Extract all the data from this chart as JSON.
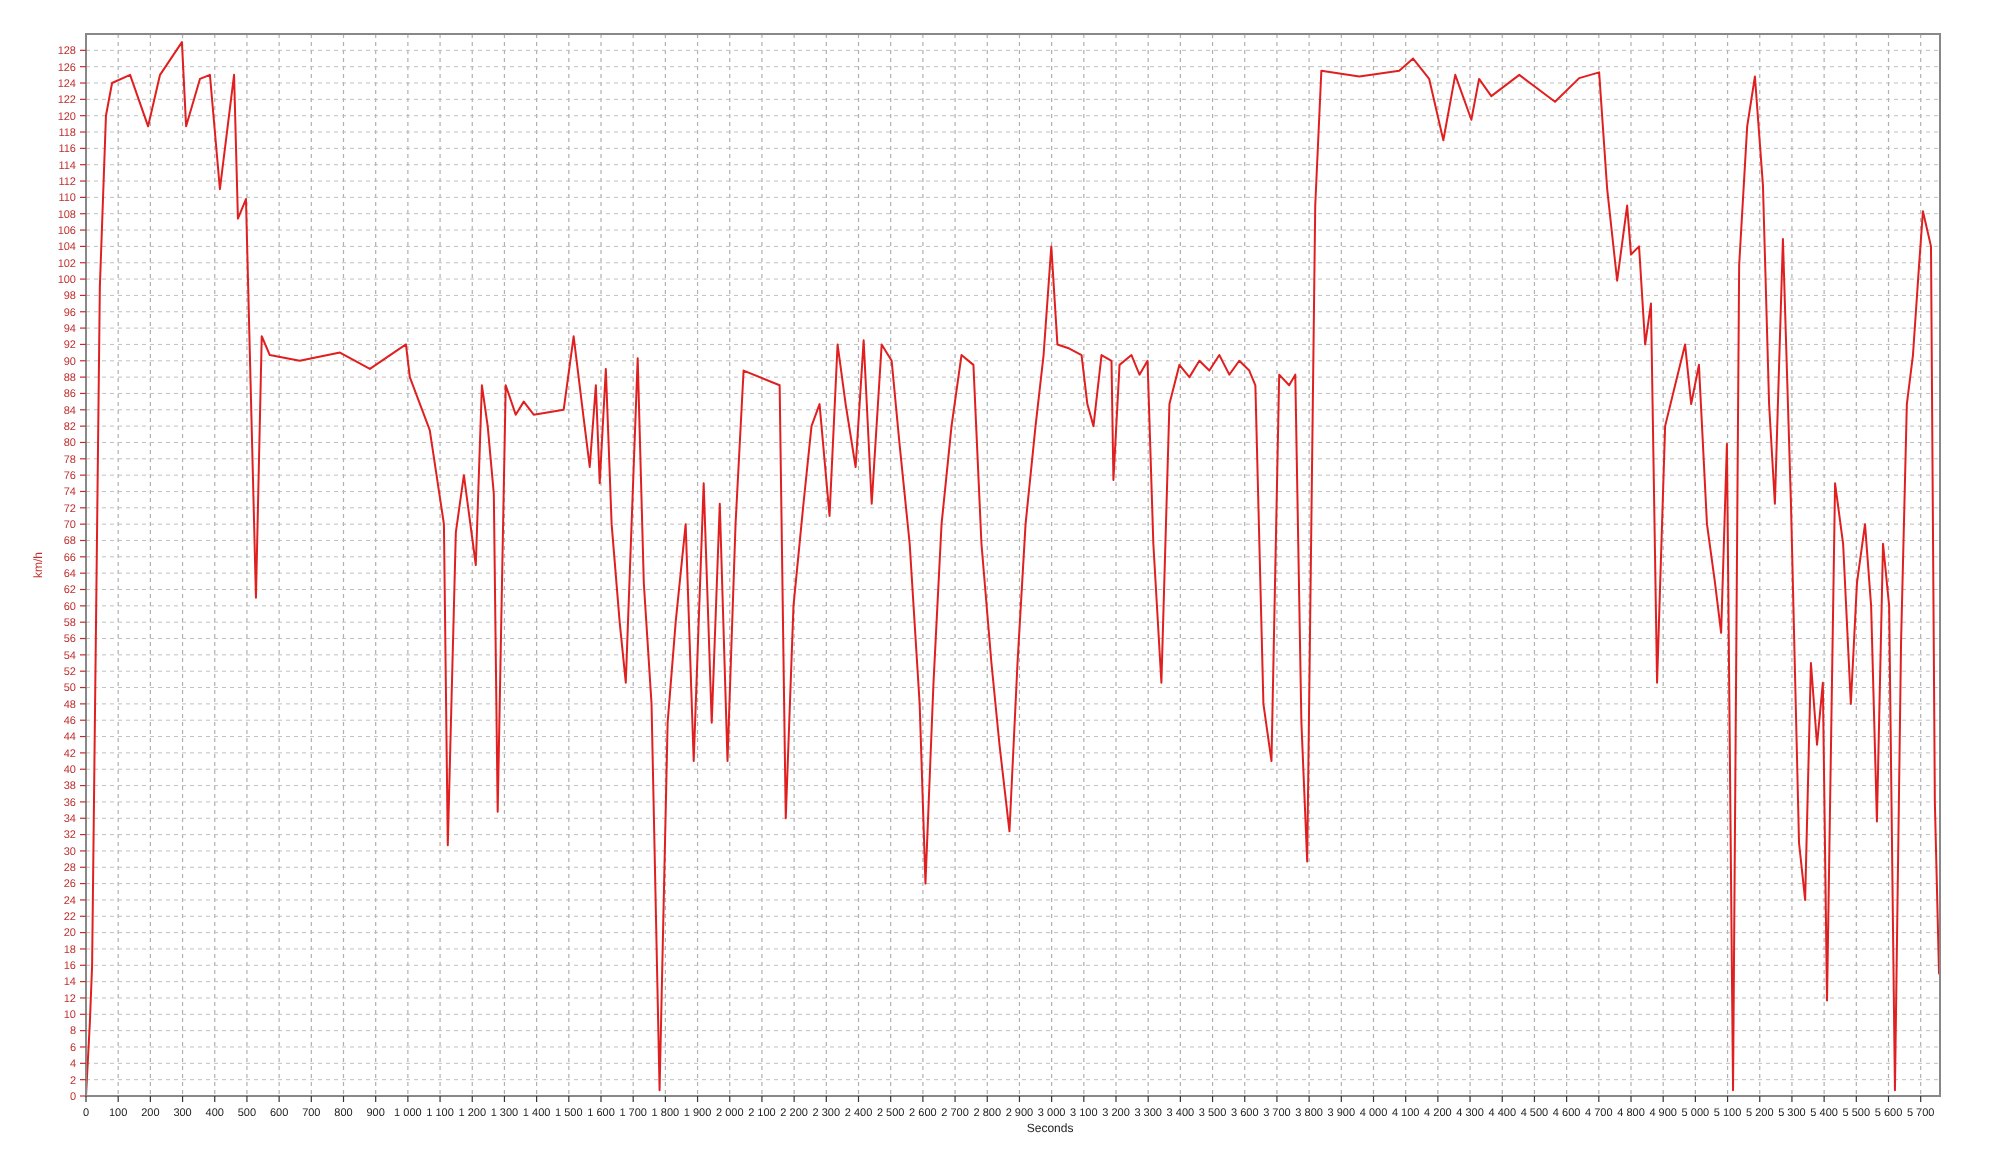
{
  "chart_data": {
    "type": "line",
    "xlabel": "Seconds",
    "ylabel": "km/h",
    "x": [
      0,
      12,
      19,
      43,
      62,
      81,
      137,
      193,
      230,
      298,
      311,
      354,
      385,
      416,
      460,
      472,
      497,
      528,
      546,
      571,
      664,
      789,
      882,
      994,
      1006,
      1068,
      1112,
      1124,
      1149,
      1174,
      1211,
      1230,
      1248,
      1267,
      1279,
      1304,
      1335,
      1360,
      1391,
      1484,
      1515,
      1546,
      1565,
      1584,
      1596,
      1615,
      1633,
      1658,
      1677,
      1695,
      1714,
      1733,
      1757,
      1782,
      1807,
      1832,
      1863,
      1888,
      1919,
      1944,
      1969,
      1993,
      2018,
      2043,
      2155,
      2174,
      2198,
      2229,
      2254,
      2279,
      2310,
      2335,
      2360,
      2391,
      2416,
      2441,
      2472,
      2503,
      2527,
      2559,
      2590,
      2608,
      2633,
      2658,
      2689,
      2720,
      2757,
      2782,
      2813,
      2838,
      2869,
      2894,
      2919,
      2950,
      2975,
      2999,
      3018,
      3055,
      3093,
      3111,
      3130,
      3155,
      3186,
      3192,
      3211,
      3248,
      3273,
      3298,
      3316,
      3341,
      3366,
      3397,
      3428,
      3459,
      3490,
      3521,
      3552,
      3583,
      3614,
      3633,
      3658,
      3683,
      3707,
      3738,
      3757,
      3776,
      3794,
      3819,
      3838,
      3956,
      4080,
      4123,
      4173,
      4217,
      4254,
      4304,
      4328,
      4366,
      4453,
      4564,
      4639,
      4701,
      4726,
      4757,
      4788,
      4800,
      4825,
      4844,
      4862,
      4881,
      4906,
      4937,
      4968,
      4987,
      5011,
      5036,
      5061,
      5080,
      5098,
      5117,
      5136,
      5161,
      5185,
      5210,
      5229,
      5247,
      5272,
      5297,
      5322,
      5341,
      5359,
      5378,
      5396,
      5409,
      5434,
      5459,
      5483,
      5502,
      5527,
      5546,
      5564,
      5583,
      5602,
      5620,
      5639,
      5657,
      5676,
      5695,
      5707,
      5732,
      5744,
      5757
    ],
    "series": [
      {
        "color": "#e02020",
        "values": [
          0,
          9,
          16,
          99,
          120,
          124,
          125,
          118.7,
          125,
          129,
          118.7,
          124.5,
          125,
          111,
          125,
          107.4,
          109.8,
          61,
          93,
          90.7,
          90,
          91,
          89,
          92,
          88,
          81.5,
          70,
          30.7,
          69,
          76,
          65,
          87,
          82,
          73.7,
          34.8,
          87,
          83.4,
          85,
          83.4,
          84,
          93,
          83,
          77,
          87,
          75,
          89,
          70,
          58,
          50.6,
          70,
          90.3,
          62.8,
          48,
          0.7,
          45.7,
          58,
          70,
          41,
          75,
          45.7,
          72.5,
          41,
          70,
          88.8,
          87,
          34,
          60,
          72.5,
          82,
          84.7,
          71,
          92,
          84.7,
          77,
          92.5,
          72.5,
          92,
          90,
          80,
          67.6,
          48,
          26,
          50.6,
          70,
          82,
          90.7,
          89.5,
          67.6,
          53,
          43,
          32.4,
          53,
          70,
          82,
          90.7,
          104,
          92,
          91.5,
          90.7,
          84.7,
          82,
          90.7,
          90,
          75.4,
          89.5,
          90.7,
          88.3,
          90,
          67.6,
          50.6,
          84.7,
          89.5,
          88,
          90,
          88.8,
          90.7,
          88.3,
          90,
          88.8,
          87,
          48,
          41,
          88.3,
          87,
          88.3,
          45.7,
          28.7,
          109,
          125.5,
          124.8,
          125.5,
          127,
          124.5,
          117,
          125,
          119.5,
          124.5,
          122.4,
          125,
          121.7,
          124.6,
          125.3,
          111,
          99.8,
          109,
          103,
          104,
          92,
          97,
          50.6,
          82,
          87,
          92,
          84.7,
          89.5,
          70,
          62.8,
          56.7,
          79.8,
          0.7,
          101.7,
          118.7,
          124.8,
          111.4,
          84.7,
          72.5,
          104.9,
          72.5,
          31,
          24,
          53,
          43,
          50.6,
          11.7,
          75,
          67.6,
          48,
          62.8,
          70,
          60,
          33.6,
          67.6,
          60,
          0.7,
          55.5,
          84.7,
          90.7,
          101.7,
          108.3,
          104,
          36,
          15
        ]
      }
    ],
    "xlim": [
      0,
      5760
    ],
    "xticks": [
      0,
      100,
      200,
      300,
      400,
      500,
      600,
      700,
      800,
      900,
      {
        "value": 1000,
        "label": "1 000"
      },
      {
        "value": 1100,
        "label": "1 100"
      },
      {
        "value": 1200,
        "label": "1 200"
      },
      {
        "value": 1300,
        "label": "1 300"
      },
      {
        "value": 1400,
        "label": "1 400"
      },
      {
        "value": 1500,
        "label": "1 500"
      },
      {
        "value": 1600,
        "label": "1 600"
      },
      {
        "value": 1700,
        "label": "1 700"
      },
      {
        "value": 1800,
        "label": "1 800"
      },
      {
        "value": 1900,
        "label": "1 900"
      },
      {
        "value": 2000,
        "label": "2 000"
      },
      {
        "value": 2100,
        "label": "2 100"
      },
      {
        "value": 2200,
        "label": "2 200"
      },
      {
        "value": 2300,
        "label": "2 300"
      },
      {
        "value": 2400,
        "label": "2 400"
      },
      {
        "value": 2500,
        "label": "2 500"
      },
      {
        "value": 2600,
        "label": "2 600"
      },
      {
        "value": 2700,
        "label": "2 700"
      },
      {
        "value": 2800,
        "label": "2 800"
      },
      {
        "value": 2900,
        "label": "2 900"
      },
      {
        "value": 3000,
        "label": "3 000"
      },
      {
        "value": 3100,
        "label": "3 100"
      },
      {
        "value": 3200,
        "label": "3 200"
      },
      {
        "value": 3300,
        "label": "3 300"
      },
      {
        "value": 3400,
        "label": "3 400"
      },
      {
        "value": 3500,
        "label": "3 500"
      },
      {
        "value": 3600,
        "label": "3 600"
      },
      {
        "value": 3700,
        "label": "3 700"
      },
      {
        "value": 3800,
        "label": "3 800"
      },
      {
        "value": 3900,
        "label": "3 900"
      },
      {
        "value": 4000,
        "label": "4 000"
      },
      {
        "value": 4100,
        "label": "4 100"
      },
      {
        "value": 4200,
        "label": "4 200"
      },
      {
        "value": 4300,
        "label": "4 300"
      },
      {
        "value": 4400,
        "label": "4 400"
      },
      {
        "value": 4500,
        "label": "4 500"
      },
      {
        "value": 4600,
        "label": "4 600"
      },
      {
        "value": 4700,
        "label": "4 700"
      },
      {
        "value": 4800,
        "label": "4 800"
      },
      {
        "value": 4900,
        "label": "4 900"
      },
      {
        "value": 5000,
        "label": "5 000"
      },
      {
        "value": 5100,
        "label": "5 100"
      },
      {
        "value": 5200,
        "label": "5 200"
      },
      {
        "value": 5300,
        "label": "5 300"
      },
      {
        "value": 5400,
        "label": "5 400"
      },
      {
        "value": 5500,
        "label": "5 500"
      },
      {
        "value": 5600,
        "label": "5 600"
      },
      {
        "value": 5700,
        "label": "5 700"
      }
    ],
    "ylim": [
      0,
      130
    ],
    "yticks": [
      0,
      2,
      4,
      6,
      8,
      10,
      12,
      14,
      16,
      18,
      20,
      22,
      24,
      26,
      28,
      30,
      32,
      34,
      36,
      38,
      40,
      42,
      44,
      46,
      48,
      50,
      52,
      54,
      56,
      58,
      60,
      62,
      64,
      66,
      68,
      70,
      72,
      74,
      76,
      78,
      80,
      82,
      84,
      86,
      88,
      90,
      92,
      94,
      96,
      98,
      100,
      102,
      104,
      106,
      108,
      110,
      112,
      114,
      116,
      118,
      120,
      122,
      124,
      126,
      128
    ],
    "grid": true
  }
}
